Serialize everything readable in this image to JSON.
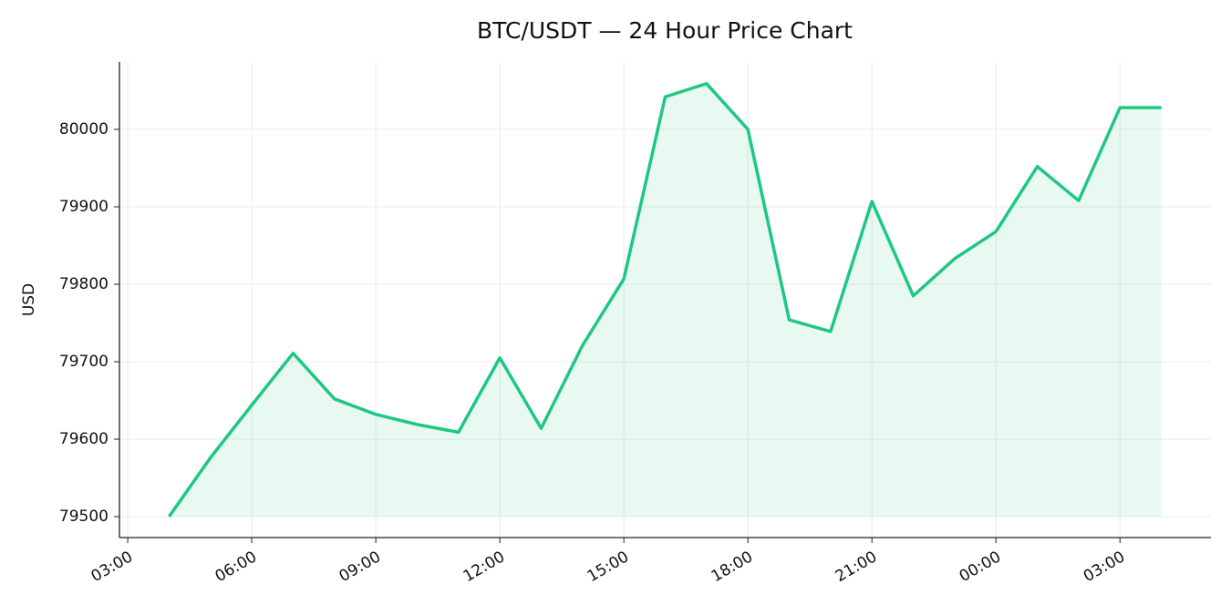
{
  "chart_data": {
    "type": "line",
    "title": "BTC/USDT — 24 Hour Price Chart",
    "y_label": "USD",
    "x": [
      4,
      5,
      6,
      7,
      8,
      9,
      10,
      11,
      12,
      13,
      14,
      15,
      16,
      17,
      18,
      19,
      20,
      21,
      22,
      23,
      24,
      25,
      26,
      27,
      28
    ],
    "series": [
      {
        "name": "BTC/USDT",
        "color": "#1ec882",
        "values": [
          79500,
          79576,
          79644,
          79711,
          79652,
          79632,
          79619,
          79609,
          79705,
          79614,
          79721,
          79807,
          80042,
          80059,
          80000,
          79754,
          79739,
          79907,
          79785,
          79833,
          79868,
          79952,
          79908,
          80028,
          80028
        ]
      }
    ],
    "xlim": [
      2.8,
      29.2
    ],
    "xticks": [
      {
        "value": 3,
        "label": "03:00"
      },
      {
        "value": 6,
        "label": "06:00"
      },
      {
        "value": 9,
        "label": "09:00"
      },
      {
        "value": 12,
        "label": "12:00"
      },
      {
        "value": 15,
        "label": "15:00"
      },
      {
        "value": 18,
        "label": "18:00"
      },
      {
        "value": 21,
        "label": "21:00"
      },
      {
        "value": 24,
        "label": "00:00"
      },
      {
        "value": 27,
        "label": "03:00"
      }
    ],
    "ylim": [
      79473,
      80087
    ],
    "yticks": [
      79500,
      79600,
      79700,
      79800,
      79900,
      80000
    ],
    "grid": true,
    "fill": true
  }
}
